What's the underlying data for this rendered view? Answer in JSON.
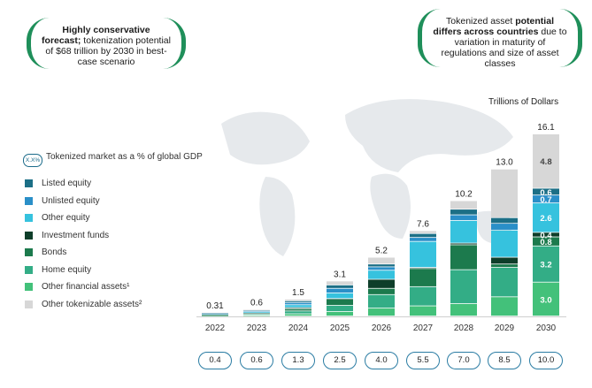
{
  "callouts": {
    "left": {
      "bold": "Highly conservative forecast;",
      "text": " tokenization potential of $68 trillion by 2030 in best-case scenario"
    },
    "right": {
      "pre": "Tokenized asset ",
      "bold": "potential differs across countries",
      "text": " due to variation in maturity of regulations and size of asset classes"
    }
  },
  "unit_label": "Trillions of Dollars",
  "legend": {
    "badge": "X.X%",
    "title": "Tokenized market as a % of global GDP"
  },
  "colors": {
    "listed_equity": "#1c6f86",
    "unlisted_equity": "#2a8fc8",
    "other_equity": "#36c2de",
    "investment_funds": "#0e3e2a",
    "bonds": "#1c7a4d",
    "home_equity": "#33ad86",
    "other_financial": "#43c17a",
    "other_tokenizable": "#d7d7d7"
  },
  "chart_data": {
    "type": "bar",
    "stacked": true,
    "categories": [
      "2022",
      "2023",
      "2024",
      "2025",
      "2026",
      "2027",
      "2028",
      "2029",
      "2030"
    ],
    "totals": [
      0.31,
      0.6,
      1.5,
      3.1,
      5.2,
      7.6,
      10.2,
      13.0,
      16.1
    ],
    "total_labels": [
      "0.31",
      "0.6",
      "1.5",
      "3.1",
      "5.2",
      "7.6",
      "10.2",
      "13.0",
      "16.1"
    ],
    "series": [
      {
        "name": "Other financial assets¹",
        "key": "other_financial",
        "values": [
          0.04,
          0.08,
          0.2,
          0.4,
          0.7,
          0.9,
          1.1,
          1.7,
          3.0
        ]
      },
      {
        "name": "Home equity",
        "key": "home_equity",
        "values": [
          0.05,
          0.1,
          0.25,
          0.55,
          1.2,
          1.7,
          3.0,
          2.6,
          3.2
        ]
      },
      {
        "name": "Bonds",
        "key": "bonds",
        "values": [
          0.03,
          0.07,
          0.2,
          0.55,
          0.55,
          1.6,
          2.2,
          0.3,
          0.8
        ]
      },
      {
        "name": "Investment funds",
        "key": "investment_funds",
        "values": [
          0.01,
          0.02,
          0.1,
          0.05,
          0.8,
          0.1,
          0.15,
          0.6,
          0.4
        ]
      },
      {
        "name": "Other equity",
        "key": "other_equity",
        "values": [
          0.08,
          0.12,
          0.25,
          0.5,
          0.8,
          2.3,
          2.0,
          2.4,
          2.6
        ]
      },
      {
        "name": "Unlisted equity",
        "key": "unlisted_equity",
        "values": [
          0.04,
          0.08,
          0.2,
          0.4,
          0.3,
          0.35,
          0.5,
          0.6,
          0.7
        ]
      },
      {
        "name": "Listed equity",
        "key": "listed_equity",
        "values": [
          0.03,
          0.06,
          0.15,
          0.3,
          0.25,
          0.35,
          0.5,
          0.5,
          0.6
        ]
      },
      {
        "name": "Other tokenizable assets²",
        "key": "other_tokenizable",
        "values": [
          0.03,
          0.07,
          0.15,
          0.35,
          0.6,
          0.25,
          0.75,
          4.3,
          4.8
        ]
      }
    ],
    "labeled_segments_2030": [
      "3.0",
      "3.2",
      "0.8",
      "0.4",
      "2.6",
      "0.7",
      "0.6",
      "4.8"
    ],
    "gdp_percent": [
      "0.4",
      "0.6",
      "1.3",
      "2.5",
      "4.0",
      "5.5",
      "7.0",
      "8.5",
      "10.0"
    ],
    "legend_order": [
      "Listed equity",
      "Unlisted equity",
      "Other equity",
      "Investment funds",
      "Bonds",
      "Home equity",
      "Other financial assets¹",
      "Other tokenizable assets²"
    ],
    "ylim": [
      0,
      16.1
    ]
  }
}
